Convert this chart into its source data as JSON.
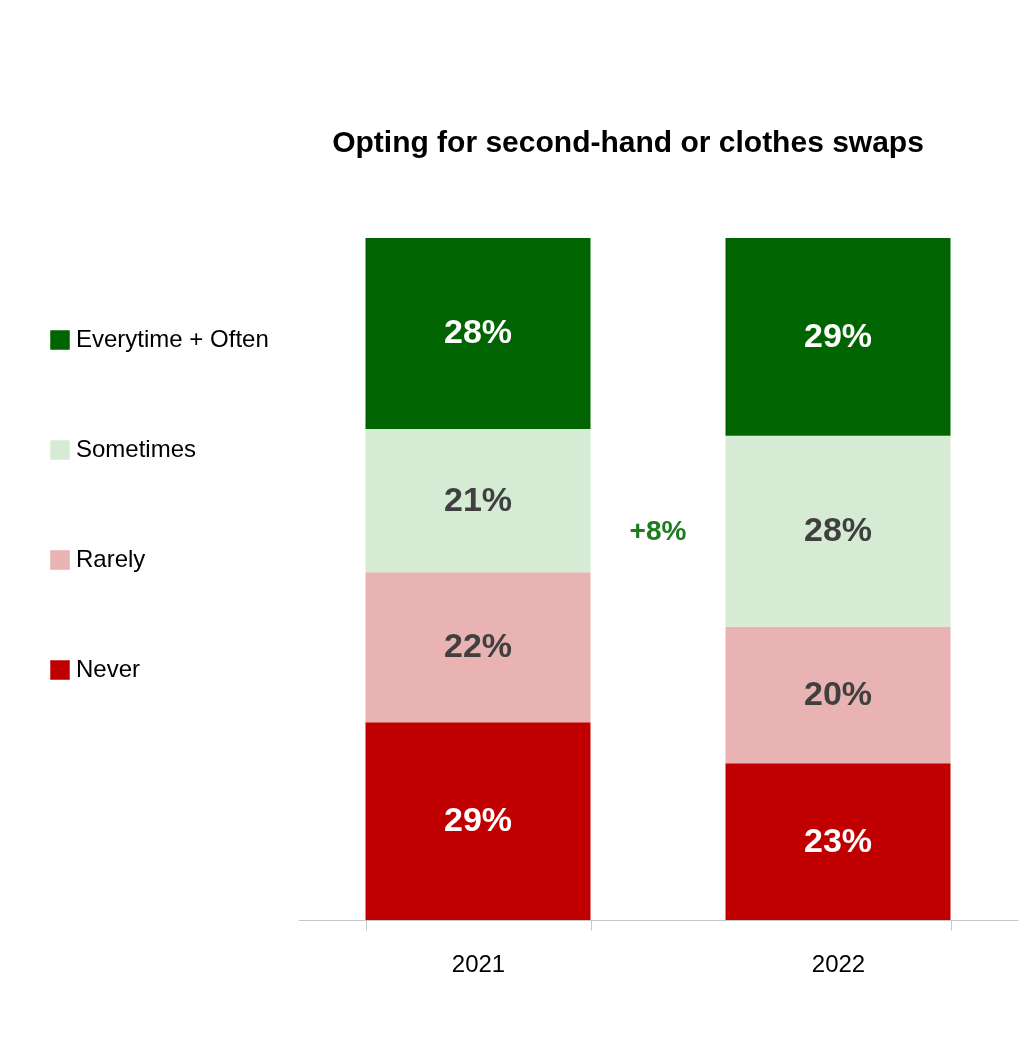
{
  "chart_data": {
    "type": "bar",
    "title": "Opting for second-hand or clothes swaps",
    "categories": [
      "2021",
      "2022"
    ],
    "stacked": true,
    "legend": "left",
    "series": [
      {
        "name": "Never",
        "color": "#c00000",
        "values": [
          29,
          23
        ],
        "value_labels": [
          "29%",
          "23%"
        ]
      },
      {
        "name": "Rarely",
        "color": "#eab3b3",
        "values": [
          22,
          20
        ],
        "value_labels": [
          "22%",
          "20%"
        ]
      },
      {
        "name": "Sometimes",
        "color": "#d5ebd3",
        "values": [
          21,
          28
        ],
        "value_labels": [
          "21%",
          "28%"
        ]
      },
      {
        "name": "Everytime + Often",
        "color": "#006400",
        "values": [
          28,
          29
        ],
        "value_labels": [
          "28%",
          "29%"
        ]
      }
    ],
    "annotations": [
      "+8%"
    ]
  }
}
